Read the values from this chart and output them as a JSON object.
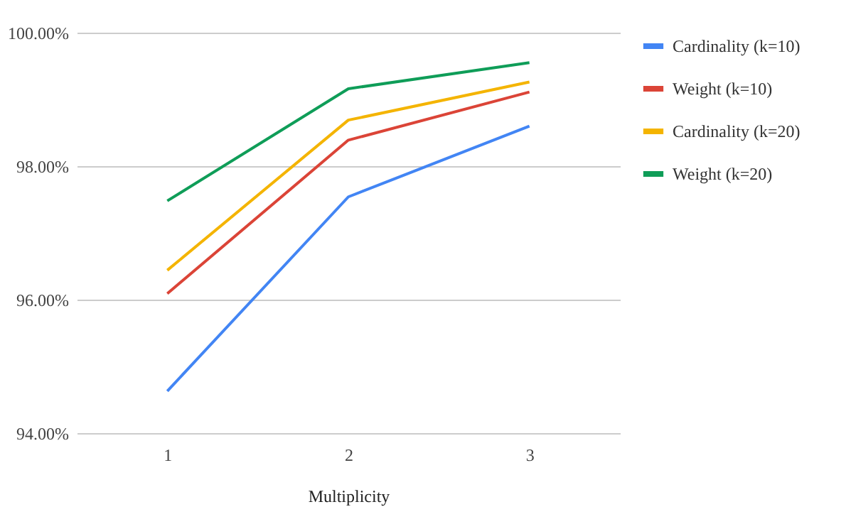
{
  "chart_data": {
    "type": "line",
    "xlabel": "Multiplicity",
    "categories": [
      "1",
      "2",
      "3"
    ],
    "series": [
      {
        "name": "Cardinality (k=10)",
        "color": "#4285f4",
        "values": [
          94.63,
          97.54,
          98.6
        ]
      },
      {
        "name": "Weight (k=10)",
        "color": "#db4437",
        "values": [
          96.09,
          98.39,
          99.11
        ]
      },
      {
        "name": "Cardinality (k=20)",
        "color": "#f4b400",
        "values": [
          96.44,
          98.69,
          99.26
        ]
      },
      {
        "name": "Weight (k=20)",
        "color": "#0f9d58",
        "values": [
          97.48,
          99.16,
          99.55
        ]
      }
    ],
    "ylim": [
      94,
      100
    ],
    "yticks": [
      {
        "value": 94,
        "label": "94.00%"
      },
      {
        "value": 96,
        "label": "96.00%"
      },
      {
        "value": 98,
        "label": "98.00%"
      },
      {
        "value": 100,
        "label": "100.00%"
      }
    ],
    "grid": "y",
    "legend": "top right",
    "marker": "none",
    "line_style": "solid"
  }
}
